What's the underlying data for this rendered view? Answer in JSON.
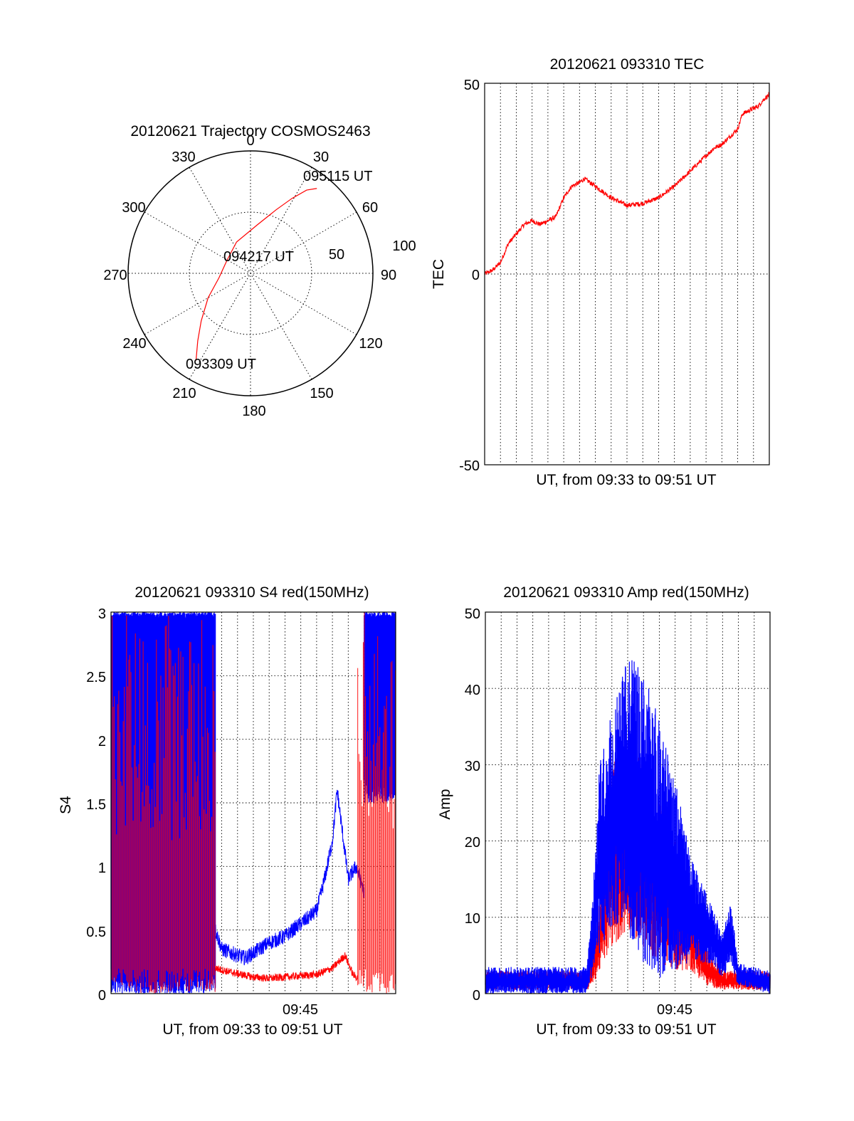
{
  "colors": {
    "primary": "#ff0000",
    "secondary": "#0000ff",
    "axis": "#000000",
    "grid": "#000000"
  },
  "chart_data": [
    {
      "id": "trajectory",
      "type": "polar",
      "title": "20120621 Trajectory COSMOS2463",
      "angle_labels": [
        "0",
        "30",
        "60",
        "90",
        "120",
        "150",
        "180",
        "210",
        "240",
        "270",
        "300",
        "330"
      ],
      "radius_labels": [
        "50",
        "100"
      ],
      "rlim": [
        0,
        100
      ],
      "grid": true,
      "annotations": [
        "095115 UT",
        "094217 UT",
        "093309 UT"
      ],
      "trajectory": [
        {
          "az": 212,
          "r": 84
        },
        {
          "az": 218,
          "r": 70
        },
        {
          "az": 226,
          "r": 56
        },
        {
          "az": 240,
          "r": 40
        },
        {
          "az": 262,
          "r": 26
        },
        {
          "az": 300,
          "r": 22
        },
        {
          "az": 336,
          "r": 28
        },
        {
          "az": 8,
          "r": 40
        },
        {
          "az": 22,
          "r": 56
        },
        {
          "az": 29,
          "r": 70
        },
        {
          "az": 34,
          "r": 82
        },
        {
          "az": 38,
          "r": 88
        }
      ]
    },
    {
      "id": "tec",
      "type": "line",
      "title": "20120621 093310 TEC",
      "ylabel": "TEC",
      "xlabel": "UT, from 09:33 to 09:51 UT",
      "xlim": [
        0,
        18
      ],
      "ylim": [
        -50,
        50
      ],
      "yticks": [
        "50",
        "0",
        "-50"
      ],
      "grid": true,
      "series": [
        {
          "color": "#ff0000",
          "noise": 0.6,
          "points": [
            [
              0,
              0
            ],
            [
              0.5,
              1
            ],
            [
              1,
              3
            ],
            [
              1.5,
              8
            ],
            [
              2.5,
              13
            ],
            [
              3,
              14
            ],
            [
              3.5,
              13
            ],
            [
              4.5,
              15
            ],
            [
              5,
              20
            ],
            [
              5.5,
              23
            ],
            [
              6,
              24
            ],
            [
              6.3,
              25
            ],
            [
              7,
              23
            ],
            [
              8,
              20
            ],
            [
              9,
              18
            ],
            [
              10,
              18.5
            ],
            [
              11,
              20
            ],
            [
              12,
              23
            ],
            [
              13,
              27
            ],
            [
              14,
              31
            ],
            [
              14.5,
              33
            ],
            [
              15,
              34
            ],
            [
              15.5,
              36
            ],
            [
              16,
              38
            ],
            [
              16.3,
              42
            ],
            [
              16.8,
              43
            ],
            [
              17.3,
              44
            ],
            [
              17.7,
              46
            ],
            [
              18,
              47
            ]
          ]
        }
      ]
    },
    {
      "id": "s4",
      "type": "line",
      "title": "20120621 093310 S4 red(150MHz)",
      "ylabel": "S4",
      "xlabel": "UT, from 09:33 to 09:51 UT",
      "xtick_label": "09:45",
      "xlim": [
        0,
        18
      ],
      "ylim": [
        0,
        3
      ],
      "yticks": [
        "0",
        "0.5",
        "1",
        "1.5",
        "2",
        "2.5",
        "3"
      ],
      "grid": true,
      "series": [
        {
          "color": "#0000ff",
          "segments": [
            {
              "type": "spikes",
              "x0": 0,
              "x1": 6.6,
              "low": 0,
              "high": 3
            },
            {
              "type": "noisy",
              "noise": 0.06,
              "points": [
                [
                  6.6,
                  0.5
                ],
                [
                  7,
                  0.35
                ],
                [
                  8,
                  0.3
                ],
                [
                  8.5,
                  0.28
                ],
                [
                  9,
                  0.32
                ],
                [
                  10,
                  0.4
                ],
                [
                  11,
                  0.45
                ],
                [
                  12,
                  0.55
                ],
                [
                  13,
                  0.65
                ],
                [
                  13.5,
                  0.9
                ],
                [
                  14,
                  1.2
                ],
                [
                  14.3,
                  1.6
                ],
                [
                  14.6,
                  1.3
                ],
                [
                  15,
                  0.9
                ],
                [
                  15.5,
                  1.0
                ],
                [
                  16,
                  0.8
                ]
              ]
            },
            {
              "type": "spikes",
              "x0": 16,
              "x1": 18,
              "low": 1.5,
              "high": 3
            }
          ]
        },
        {
          "color": "#ff0000",
          "segments": [
            {
              "type": "spikes",
              "x0": 0,
              "x1": 6.6,
              "low": 0,
              "high": 3
            },
            {
              "type": "noisy",
              "noise": 0.03,
              "points": [
                [
                  6.6,
                  0.2
                ],
                [
                  7.5,
                  0.17
                ],
                [
                  9,
                  0.13
                ],
                [
                  10,
                  0.12
                ],
                [
                  11,
                  0.13
                ],
                [
                  12,
                  0.14
                ],
                [
                  13,
                  0.15
                ],
                [
                  14,
                  0.2
                ],
                [
                  14.8,
                  0.3
                ],
                [
                  15.3,
                  0.15
                ],
                [
                  15.6,
                  0.12
                ]
              ]
            },
            {
              "type": "spikes",
              "x0": 15.6,
              "x1": 18,
              "low": 0,
              "high": 3
            }
          ]
        }
      ]
    },
    {
      "id": "amp",
      "type": "line",
      "title": "20120621 093310 Amp red(150MHz)",
      "ylabel": "Amp",
      "xlabel": "UT, from 09:33 to 09:51 UT",
      "xtick_label": "09:45",
      "xlim": [
        0,
        18
      ],
      "ylim": [
        0,
        50
      ],
      "yticks": [
        "0",
        "10",
        "20",
        "30",
        "40",
        "50"
      ],
      "grid": true,
      "series": [
        {
          "color": "#ff0000",
          "band": [
            [
              0,
              0.5,
              3
            ],
            [
              6.5,
              0.5,
              3
            ],
            [
              7,
              2,
              8
            ],
            [
              8,
              6,
              30
            ],
            [
              9,
              8,
              33
            ],
            [
              10,
              6,
              30
            ],
            [
              11,
              4,
              26
            ],
            [
              12,
              3,
              20
            ],
            [
              13,
              3,
              14
            ],
            [
              14,
              1,
              6
            ],
            [
              15,
              0.5,
              3
            ],
            [
              18,
              0.5,
              3
            ]
          ]
        },
        {
          "color": "#0000ff",
          "band": [
            [
              0,
              0,
              3.5
            ],
            [
              6.4,
              0,
              3.5
            ],
            [
              6.7,
              2,
              10
            ],
            [
              7.2,
              5,
              30
            ],
            [
              8,
              8,
              38
            ],
            [
              8.8,
              10,
              44
            ],
            [
              9.5,
              5,
              44
            ],
            [
              10,
              4,
              42
            ],
            [
              11,
              2,
              36
            ],
            [
              12,
              3,
              28
            ],
            [
              13,
              4,
              18
            ],
            [
              14,
              4,
              13
            ],
            [
              15,
              2,
              8
            ],
            [
              15.5,
              4,
              12
            ],
            [
              16,
              1,
              4
            ],
            [
              18,
              0,
              3
            ]
          ]
        }
      ]
    }
  ]
}
